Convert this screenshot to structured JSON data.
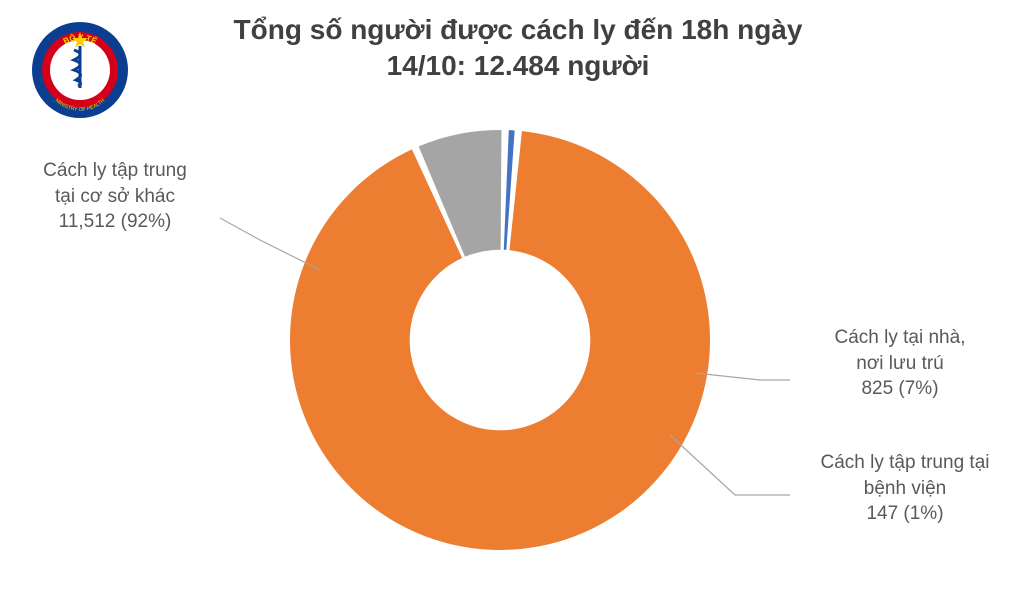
{
  "title_line1": "Tổng số người được cách ly đến 18h ngày",
  "title_line2": "14/10: 12.484 người",
  "chart": {
    "type": "donut",
    "background_color": "#ffffff",
    "inner_radius_ratio": 0.43,
    "slice_gap_deg": 2,
    "start_angle_deg": 84,
    "series": [
      {
        "label_l1": "Cách ly tập trung",
        "label_l2": "tại cơ sở khác",
        "label_l3": "11,512 (92%)",
        "value": 11512,
        "percent": 92,
        "color": "#ed7d31"
      },
      {
        "label_l1": "Cách ly tại nhà,",
        "label_l2": "nơi lưu trú",
        "label_l3": "825 (7%)",
        "value": 825,
        "percent": 7,
        "color": "#a5a5a5"
      },
      {
        "label_l1": "Cách ly tập trung tại",
        "label_l2": "bệnh viện",
        "label_l3": "147 (1%)",
        "value": 147,
        "percent": 1,
        "color": "#4472c4"
      }
    ],
    "title_color": "#404040",
    "label_color": "#595959",
    "title_fontsize": 28,
    "label_fontsize": 19,
    "leader_line_color": "#a6a6a6"
  },
  "logo": {
    "outer_text_top": "BỘ Y TẾ",
    "outer_text_bottom": "MINISTRY OF HEALTH",
    "ring_color": "#0b3e91",
    "inner_fill": "#ffffff",
    "band_color": "#d4001a",
    "star_color": "#ffcc00"
  }
}
